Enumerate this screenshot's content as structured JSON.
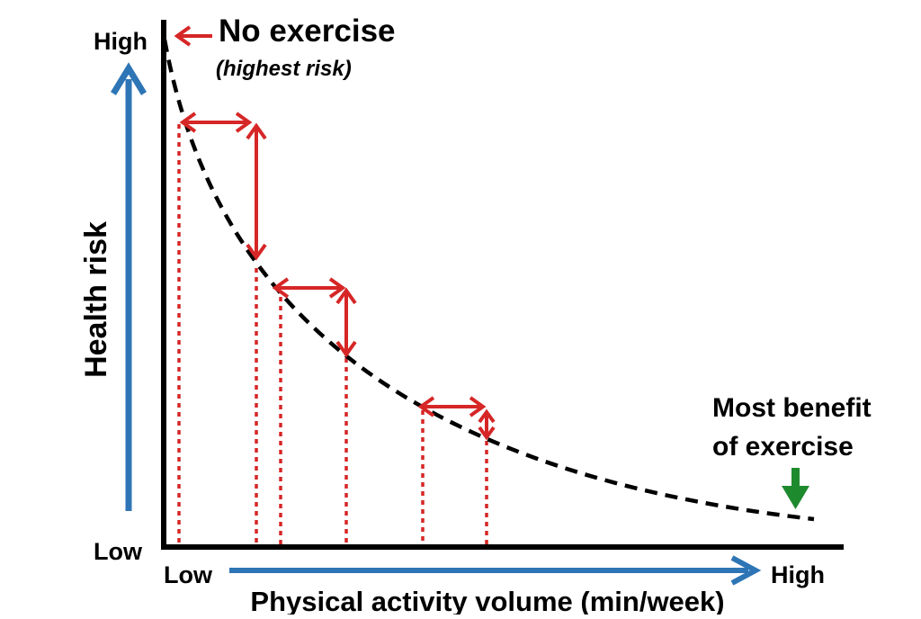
{
  "diagram": {
    "y_axis": {
      "label": "Health risk",
      "high": "High",
      "low": "Low"
    },
    "x_axis": {
      "label": "Physical activity volume (min/week)",
      "low": "Low",
      "high": "High"
    },
    "annotations": {
      "no_exercise_title": "No exercise",
      "no_exercise_note": "(highest risk)",
      "most_benefit_line1": "Most benefit",
      "most_benefit_line2": "of exercise"
    },
    "colors": {
      "axis": "#000000",
      "curve": "#000000",
      "arrow_blue": "#2e75b6",
      "arrow_red": "#d62626",
      "arrow_green": "#1e8a2e"
    }
  }
}
